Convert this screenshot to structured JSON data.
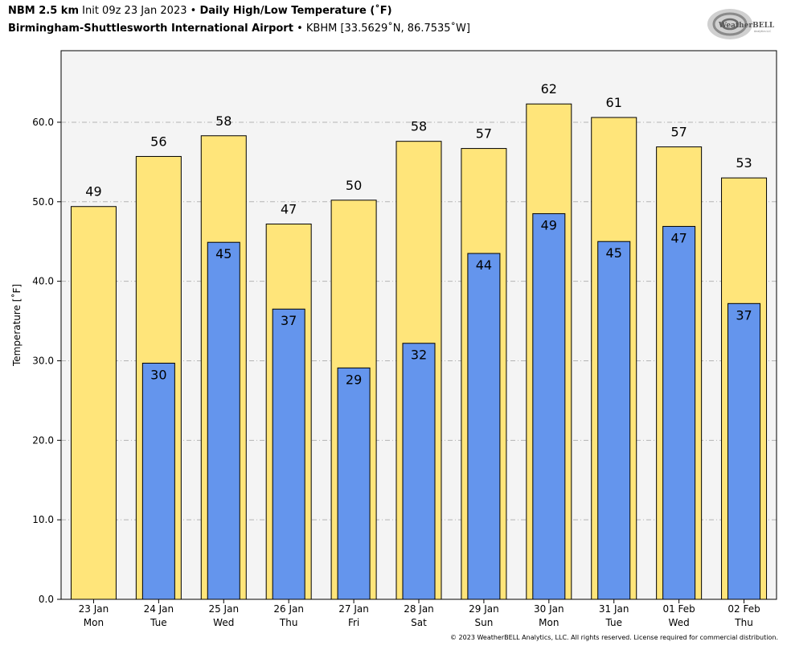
{
  "header": {
    "model": "NBM 2.5 km",
    "init": "Init 09z 23 Jan 2023",
    "sep": "•",
    "product": "Daily High/Low Temperature (˚F)",
    "station_name": "Birmingham-Shuttlesworth International Airport",
    "station_info": "KBHM [33.5629˚N, 86.7535˚W]"
  },
  "logo": {
    "text_main": "WeatherBELL",
    "text_sub": "Analytics LLC"
  },
  "copyright": "© 2023 WeatherBELL Analytics, LLC. All rights reserved. License required for commercial distribution.",
  "colors": {
    "high": "#ffe57a",
    "low": "#6495ed",
    "plot_bg": "#f4f4f4",
    "grid": "#b4b4b4"
  },
  "chart_data": {
    "type": "bar",
    "title": "Daily High/Low Temperature (˚F)",
    "ylabel": "Temperature [˚F]",
    "xlabel": "",
    "ylim": [
      0,
      69
    ],
    "yticks": [
      0,
      10,
      20,
      30,
      40,
      50,
      60
    ],
    "ytick_labels": [
      "0.0",
      "10.0",
      "20.0",
      "30.0",
      "40.0",
      "50.0",
      "60.0"
    ],
    "grid": true,
    "categories": [
      [
        "23 Jan",
        "Mon"
      ],
      [
        "24 Jan",
        "Tue"
      ],
      [
        "25 Jan",
        "Wed"
      ],
      [
        "26 Jan",
        "Thu"
      ],
      [
        "27 Jan",
        "Fri"
      ],
      [
        "28 Jan",
        "Sat"
      ],
      [
        "29 Jan",
        "Sun"
      ],
      [
        "30 Jan",
        "Mon"
      ],
      [
        "31 Jan",
        "Tue"
      ],
      [
        "01 Feb",
        "Wed"
      ],
      [
        "02 Feb",
        "Thu"
      ]
    ],
    "series": [
      {
        "name": "High",
        "values": [
          49.4,
          55.7,
          58.3,
          47.2,
          50.2,
          57.6,
          56.7,
          62.3,
          60.6,
          56.9,
          53.0
        ],
        "labels": [
          "49",
          "56",
          "58",
          "47",
          "50",
          "58",
          "57",
          "62",
          "61",
          "57",
          "53"
        ]
      },
      {
        "name": "Low",
        "values": [
          null,
          29.7,
          44.9,
          36.5,
          29.1,
          32.2,
          43.5,
          48.5,
          45.0,
          46.9,
          37.2
        ],
        "labels": [
          "",
          "30",
          "45",
          "37",
          "29",
          "32",
          "44",
          "49",
          "45",
          "47",
          "37"
        ]
      }
    ]
  }
}
